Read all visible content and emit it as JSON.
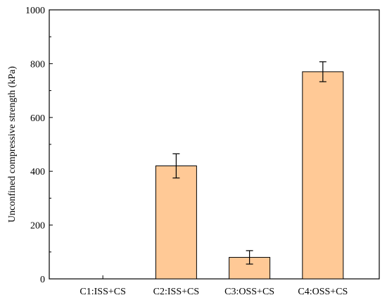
{
  "chart_data": {
    "type": "bar",
    "title": "",
    "xlabel": "",
    "ylabel": "Unconfined compressive strength (kPa)",
    "categories": [
      "C1:ISS+CS",
      "C2:ISS+CS",
      "C3:OSS+CS",
      "C4:OSS+CS"
    ],
    "values": [
      0,
      420,
      80,
      770
    ],
    "errors": [
      0,
      45,
      25,
      37
    ],
    "ylim": [
      0,
      1000
    ],
    "yticks": [
      0,
      200,
      400,
      600,
      800,
      1000
    ],
    "grid": false,
    "legend": "none"
  },
  "colors": {
    "bar_fill": "#FFC996",
    "bar_stroke": "#000000",
    "axis": "#000000"
  }
}
